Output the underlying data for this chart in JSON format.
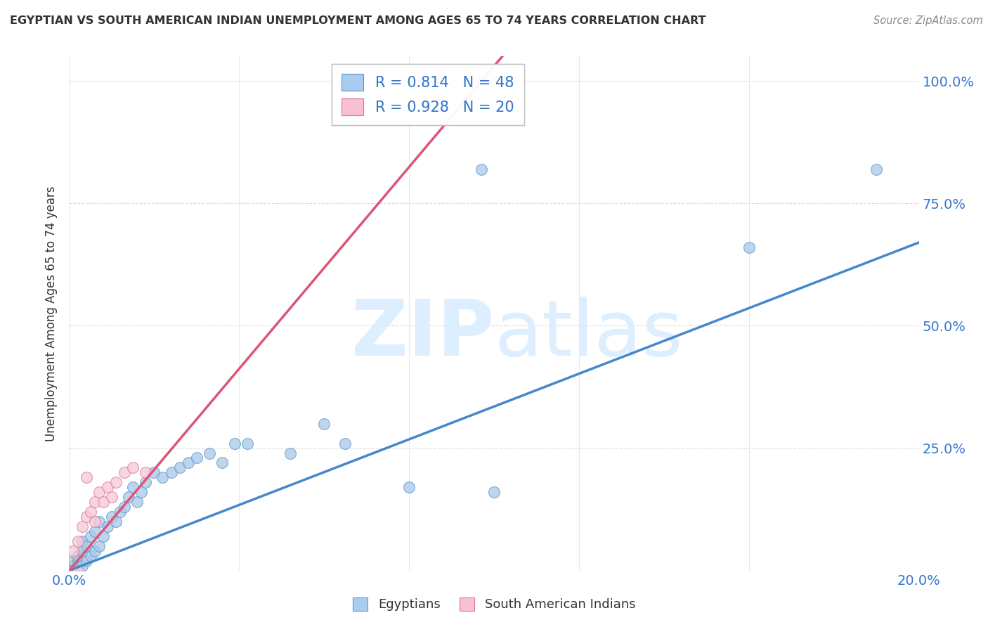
{
  "title": "EGYPTIAN VS SOUTH AMERICAN INDIAN UNEMPLOYMENT AMONG AGES 65 TO 74 YEARS CORRELATION CHART",
  "source": "Source: ZipAtlas.com",
  "ylabel": "Unemployment Among Ages 65 to 74 years",
  "xlim": [
    0.0,
    0.2
  ],
  "ylim": [
    0.0,
    1.05
  ],
  "xticks": [
    0.0,
    0.04,
    0.08,
    0.12,
    0.16,
    0.2
  ],
  "xticklabels": [
    "0.0%",
    "",
    "",
    "",
    "",
    "20.0%"
  ],
  "yticks": [
    0.0,
    0.25,
    0.5,
    0.75,
    1.0
  ],
  "yticklabels": [
    "",
    "25.0%",
    "50.0%",
    "75.0%",
    "100.0%"
  ],
  "blue_color": "#a8c8e8",
  "blue_edge_color": "#5599cc",
  "pink_color": "#f8c8d8",
  "pink_edge_color": "#dd7799",
  "line_blue_color": "#4488cc",
  "line_pink_color": "#dd5577",
  "watermark_color": "#ddeeff",
  "legend_box_blue": "#aaccee",
  "legend_box_pink": "#f8c0d0",
  "legend_text_color": "#3377cc",
  "axis_label_color": "#3377cc",
  "title_color": "#333333",
  "source_color": "#888888",
  "R_blue": 0.814,
  "N_blue": 48,
  "R_pink": 0.928,
  "N_pink": 20,
  "blue_x": [
    0.0,
    0.0,
    0.001,
    0.001,
    0.001,
    0.002,
    0.002,
    0.002,
    0.003,
    0.003,
    0.003,
    0.004,
    0.004,
    0.005,
    0.005,
    0.006,
    0.006,
    0.007,
    0.007,
    0.008,
    0.009,
    0.01,
    0.011,
    0.012,
    0.013,
    0.014,
    0.015,
    0.016,
    0.017,
    0.018,
    0.02,
    0.022,
    0.024,
    0.026,
    0.028,
    0.03,
    0.033,
    0.036,
    0.039,
    0.042,
    0.052,
    0.06,
    0.065,
    0.08,
    0.097,
    0.1,
    0.16,
    0.19
  ],
  "blue_y": [
    0.0,
    0.0,
    0.0,
    0.01,
    0.02,
    0.0,
    0.02,
    0.03,
    0.01,
    0.04,
    0.06,
    0.02,
    0.05,
    0.03,
    0.07,
    0.04,
    0.08,
    0.05,
    0.1,
    0.07,
    0.09,
    0.11,
    0.1,
    0.12,
    0.13,
    0.15,
    0.17,
    0.14,
    0.16,
    0.18,
    0.2,
    0.19,
    0.2,
    0.21,
    0.22,
    0.23,
    0.24,
    0.22,
    0.26,
    0.26,
    0.24,
    0.3,
    0.26,
    0.17,
    0.82,
    0.16,
    0.66,
    0.82
  ],
  "pink_x": [
    0.0,
    0.001,
    0.001,
    0.002,
    0.002,
    0.003,
    0.004,
    0.004,
    0.005,
    0.006,
    0.006,
    0.007,
    0.008,
    0.009,
    0.01,
    0.011,
    0.013,
    0.015,
    0.018,
    0.097
  ],
  "pink_y": [
    0.0,
    0.0,
    0.04,
    0.0,
    0.06,
    0.09,
    0.11,
    0.19,
    0.12,
    0.1,
    0.14,
    0.16,
    0.14,
    0.17,
    0.15,
    0.18,
    0.2,
    0.21,
    0.2,
    1.0
  ],
  "blue_line_x0": 0.0,
  "blue_line_x1": 0.2,
  "blue_line_y0": 0.0,
  "blue_line_y1": 0.67,
  "pink_line_slope": 10.3,
  "background_color": "#ffffff",
  "grid_color": "#dddddd"
}
